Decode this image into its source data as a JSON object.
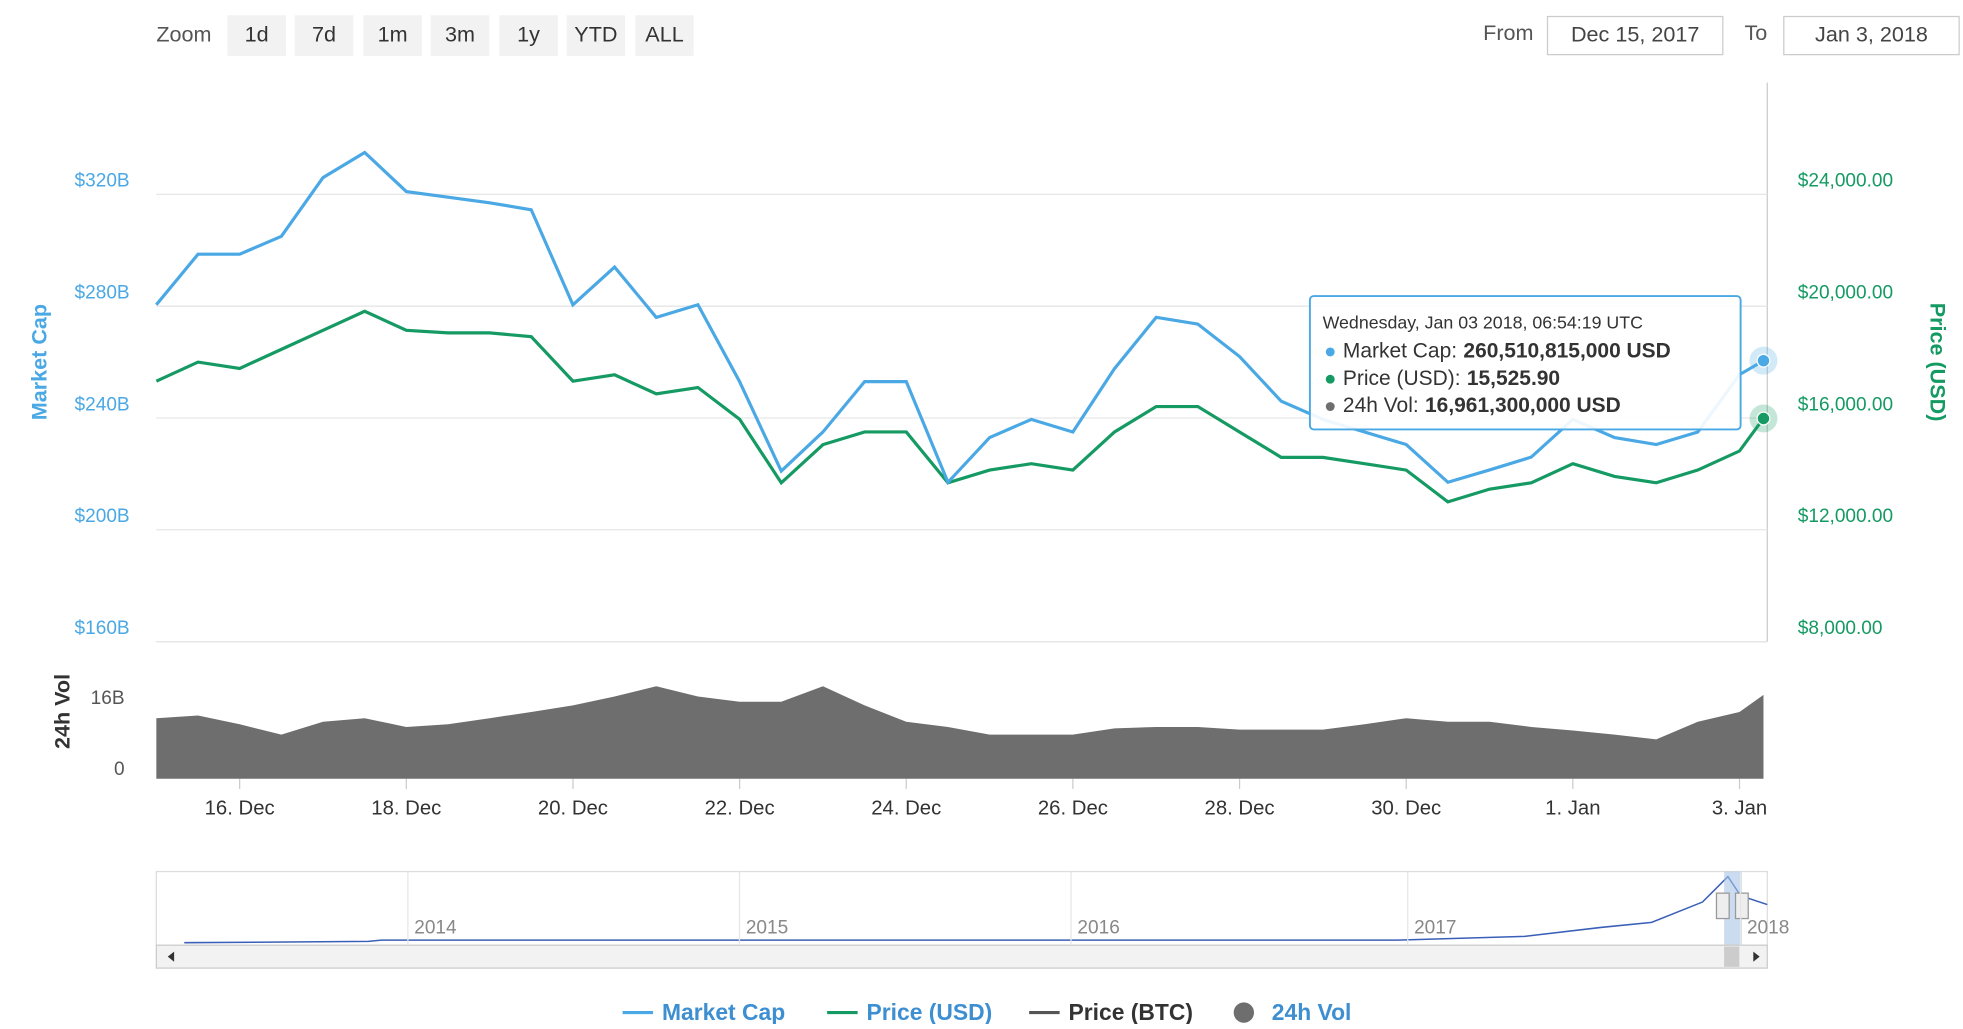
{
  "toolbar": {
    "zoom_label": "Zoom",
    "buttons": [
      "1d",
      "7d",
      "1m",
      "3m",
      "1y",
      "YTD",
      "ALL"
    ],
    "from_label": "From",
    "from": "Dec 15, 2017",
    "to_label": "To",
    "to": "Jan 3, 2018"
  },
  "chart_data": {
    "type": "line",
    "ylabel": "Market Cap",
    "y2label": "Price (USD)",
    "vol_label": "24h Vol",
    "x": [
      "2017-12-15T00:00",
      "2017-12-15T12:00",
      "2017-12-16T00:00",
      "2017-12-16T12:00",
      "2017-12-17T00:00",
      "2017-12-17T12:00",
      "2017-12-18T00:00",
      "2017-12-18T12:00",
      "2017-12-19T00:00",
      "2017-12-19T12:00",
      "2017-12-20T00:00",
      "2017-12-20T12:00",
      "2017-12-21T00:00",
      "2017-12-21T12:00",
      "2017-12-22T00:00",
      "2017-12-22T12:00",
      "2017-12-23T00:00",
      "2017-12-23T12:00",
      "2017-12-24T00:00",
      "2017-12-24T12:00",
      "2017-12-25T00:00",
      "2017-12-25T12:00",
      "2017-12-26T00:00",
      "2017-12-26T12:00",
      "2017-12-27T00:00",
      "2017-12-27T12:00",
      "2017-12-28T00:00",
      "2017-12-28T12:00",
      "2017-12-29T00:00",
      "2017-12-29T12:00",
      "2017-12-30T00:00",
      "2017-12-30T12:00",
      "2017-12-31T00:00",
      "2017-12-31T12:00",
      "2018-01-01T00:00",
      "2018-01-01T12:00",
      "2018-01-02T00:00",
      "2018-01-02T12:00",
      "2018-01-03T00:00",
      "2018-01-03T06:54:19"
    ],
    "xlim": [
      "2017-12-15T00:00",
      "2018-01-03T08:00"
    ],
    "xticks": [
      {
        "value": "2017-12-16T00:00",
        "label": "16. Dec"
      },
      {
        "value": "2017-12-18T00:00",
        "label": "18. Dec"
      },
      {
        "value": "2017-12-20T00:00",
        "label": "20. Dec"
      },
      {
        "value": "2017-12-22T00:00",
        "label": "22. Dec"
      },
      {
        "value": "2017-12-24T00:00",
        "label": "24. Dec"
      },
      {
        "value": "2017-12-26T00:00",
        "label": "26. Dec"
      },
      {
        "value": "2017-12-28T00:00",
        "label": "28. Dec"
      },
      {
        "value": "2017-12-30T00:00",
        "label": "30. Dec"
      },
      {
        "value": "2018-01-01T00:00",
        "label": "1. Jan"
      },
      {
        "value": "2018-01-03T00:00",
        "label": "3. Jan"
      }
    ],
    "ylim": [
      160,
      360
    ],
    "yticks": [
      {
        "value": 160,
        "label": "$160B"
      },
      {
        "value": 200,
        "label": "$200B"
      },
      {
        "value": 240,
        "label": "$240B"
      },
      {
        "value": 280,
        "label": "$280B"
      },
      {
        "value": 320,
        "label": "$320B"
      }
    ],
    "y2lim": [
      7545,
      27545
    ],
    "y2ticks": [
      {
        "value": 8000,
        "label": "$8,000.00"
      },
      {
        "value": 12000,
        "label": "$12,000.00"
      },
      {
        "value": 16000,
        "label": "$16,000.00"
      },
      {
        "value": 20000,
        "label": "$20,000.00"
      },
      {
        "value": 24000,
        "label": "$24,000.00"
      }
    ],
    "vollim": [
      -2,
      29
    ],
    "volticks": [
      0,
      {
        "value": 16,
        "label": "16B"
      }
    ],
    "grid": true,
    "series": [
      {
        "name": "Market Cap",
        "color": "#4aa8e4",
        "values": [
          280.5,
          298.6,
          298.6,
          305,
          326,
          335,
          321,
          319,
          317,
          314.5,
          280.5,
          294,
          276,
          280.5,
          253,
          221,
          235,
          253,
          253,
          217,
          233,
          239.5,
          235,
          257.7,
          276,
          273.6,
          262,
          246,
          239.5,
          235,
          230.5,
          217,
          221.4,
          226,
          239.5,
          233,
          230.5,
          235,
          255.5,
          260.51
        ]
      },
      {
        "name": "Price (USD)",
        "color": "#149a62",
        "axis": "y2",
        "values": [
          16864,
          17545,
          17318,
          18000,
          18682,
          19364,
          18682,
          18590,
          18590,
          18455,
          16864,
          17090,
          16409,
          16636,
          15500,
          13227,
          14590,
          15045,
          15045,
          13227,
          13682,
          13909,
          13682,
          15045,
          15955,
          15955,
          15045,
          14136,
          14136,
          13909,
          13682,
          12545,
          13000,
          13227,
          13909,
          13455,
          13227,
          13682,
          14364,
          15525.9
        ]
      },
      {
        "name": "24h Vol",
        "color": "#6e6e6e",
        "axis": "vol",
        "values": [
          11.7,
          12.3,
          10.3,
          8,
          10.9,
          11.7,
          9.7,
          10.3,
          11.7,
          13.1,
          14.6,
          16.6,
          18.9,
          16.6,
          15.4,
          15.4,
          18.9,
          14.6,
          10.9,
          9.7,
          8,
          8,
          8,
          9.4,
          9.7,
          9.7,
          9.1,
          9.1,
          9.1,
          10.3,
          11.7,
          10.9,
          10.9,
          9.7,
          8.9,
          8,
          6.9,
          10.9,
          13.1,
          16.96
        ]
      }
    ],
    "inactive_series": [
      {
        "name": "Price (BTC)",
        "color": "#555555"
      }
    ],
    "tooltip": {
      "title": "Wednesday, Jan 03 2018, 06:54:19 UTC",
      "rows": [
        {
          "label": "Market Cap:",
          "value": "260,510,815,000 USD"
        },
        {
          "label": "Price (USD):",
          "value": "15,525.90"
        },
        {
          "label": "24h Vol:",
          "value": "16,961,300,000 USD"
        }
      ]
    },
    "navigator_years": [
      "2014",
      "2015",
      "2016",
      "2017",
      "2018"
    ]
  }
}
